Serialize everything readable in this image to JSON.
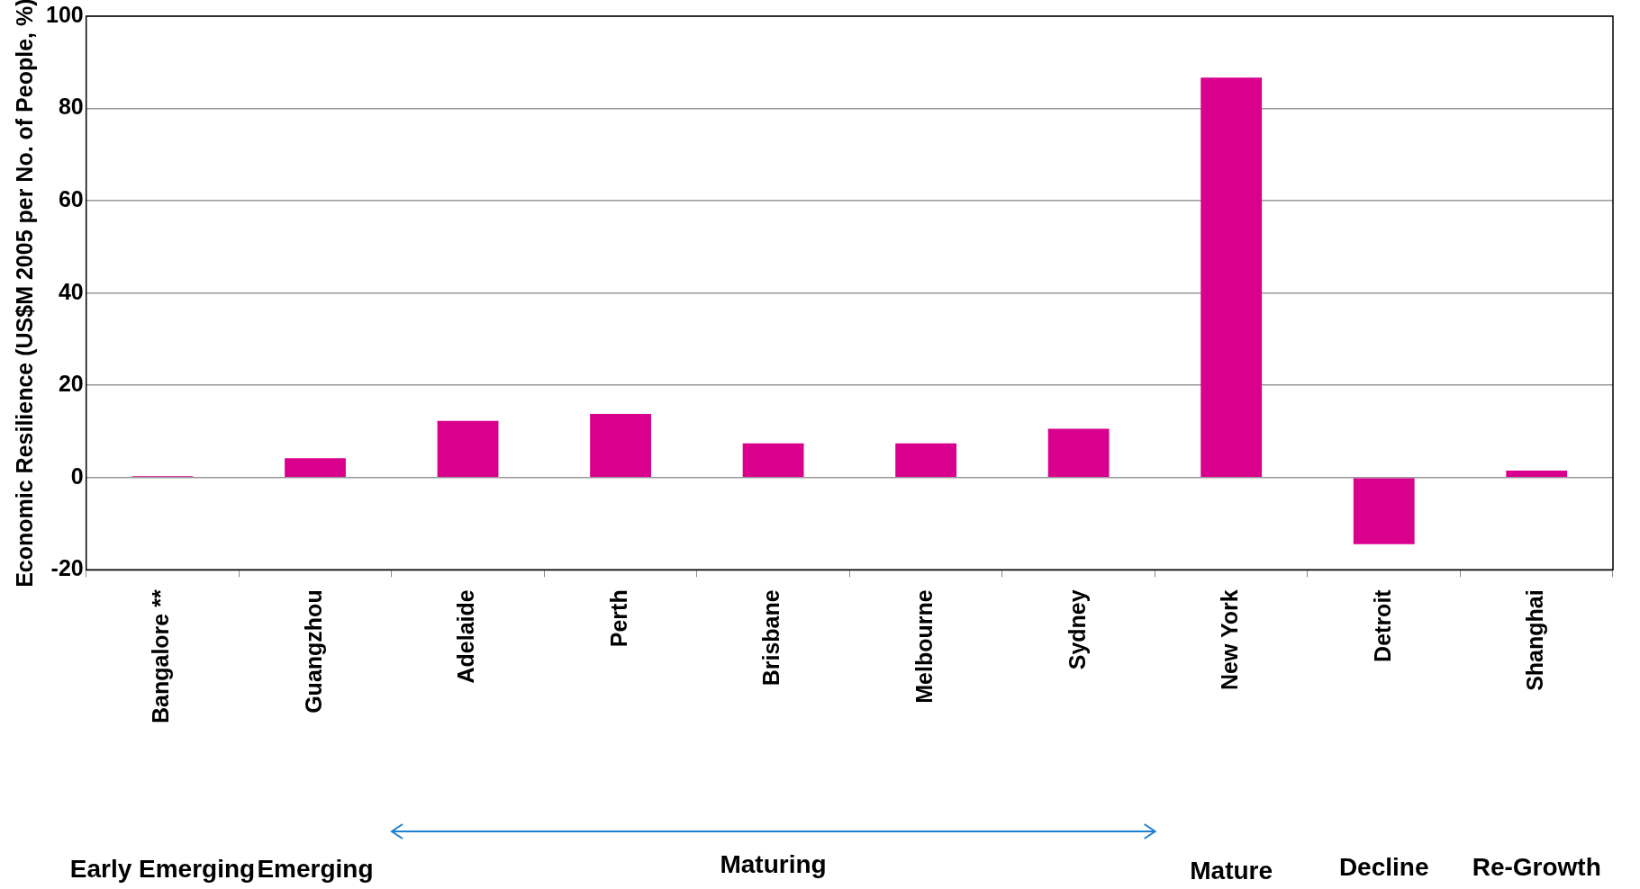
{
  "chart_data": {
    "type": "bar",
    "ylabel": "Economic Resilience (US$M 2005 per No. of People, %)",
    "categories": [
      "Bangalore **",
      "Guangzhou",
      "Adelaide",
      "Perth",
      "Brisbane",
      "Melbourne",
      "Sydney",
      "New York",
      "Detroit",
      "Shanghai"
    ],
    "values": [
      0.3,
      4.2,
      12.3,
      13.8,
      7.4,
      7.4,
      10.6,
      86.7,
      -14.4,
      1.5
    ],
    "color": "#d9008d",
    "ylim": [
      -20,
      100
    ],
    "yticks": [
      -20,
      0,
      20,
      40,
      60,
      80,
      100
    ],
    "grid": "y",
    "annotations": [
      "Early Emerging",
      "Emerging",
      "Maturing",
      "Mature",
      "Decline",
      "Re-Growth"
    ]
  }
}
